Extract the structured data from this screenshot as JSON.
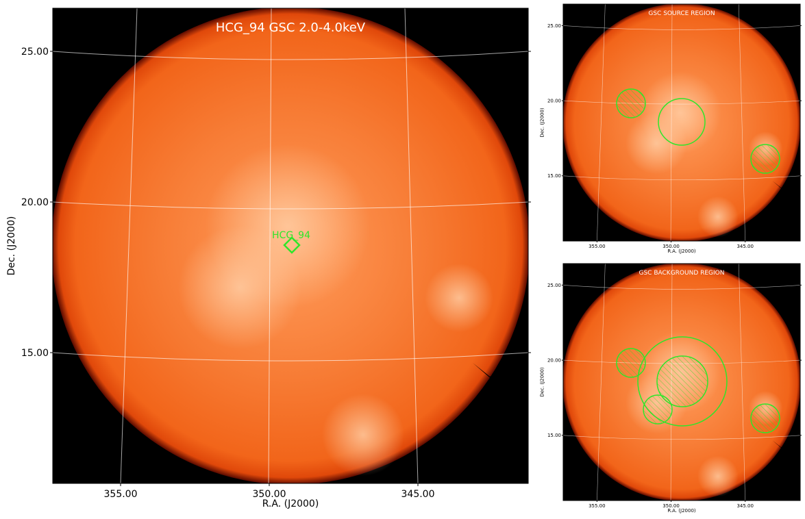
{
  "panels": [
    {
      "title": "HCG_94 GSC 2.0-4.0keV",
      "xlabel": "R.A. (J2000)",
      "ylabel": "Dec. (J2000)",
      "xticks": [
        "355.00",
        "350.00",
        "345.00"
      ],
      "yticks": [
        "25.00",
        "20.00",
        "15.00"
      ],
      "annotation": "HCG_94"
    },
    {
      "title": "GSC SOURCE REGION",
      "xlabel": "R.A. (J2000)",
      "ylabel": "Dec. (J2000)",
      "xticks": [
        "355.00",
        "350.00",
        "345.00"
      ],
      "yticks": [
        "25.00",
        "20.00",
        "15.00"
      ]
    },
    {
      "title": "GSC BACKGROUND REGION",
      "xlabel": "R.A. (J2000)",
      "ylabel": "Dec. (J2000)",
      "xticks": [
        "355.00",
        "350.00",
        "345.00"
      ],
      "yticks": [
        "25.00",
        "20.00",
        "15.00"
      ]
    }
  ]
}
